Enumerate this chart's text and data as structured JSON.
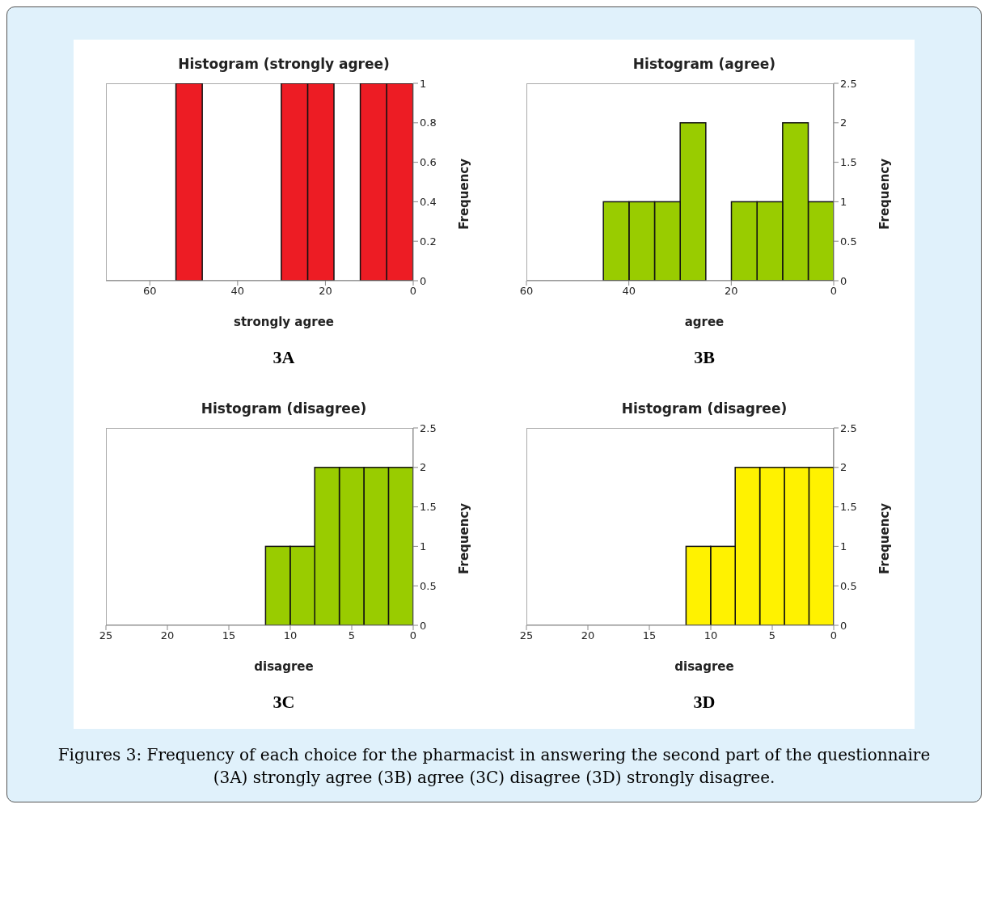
{
  "chart_data": [
    {
      "type": "histogram",
      "title": "Histogram (strongly agree)",
      "xlabel": "strongly agree",
      "ylabel": "Frequency",
      "annotations": [
        "3A"
      ],
      "bins": [
        0,
        6,
        12,
        18,
        24,
        30,
        36,
        42,
        48,
        54
      ],
      "values": [
        1,
        1,
        0,
        1,
        1,
        0,
        0,
        0,
        1
      ],
      "color": "#ed1c24",
      "xlim": [
        70,
        0
      ],
      "xticks": [
        60,
        40,
        20,
        0
      ],
      "ylim": [
        0,
        1
      ],
      "yticks": [
        0,
        0.2,
        0.4,
        0.6,
        0.8,
        1
      ]
    },
    {
      "type": "histogram",
      "title": "Histogram (agree)",
      "xlabel": "agree",
      "ylabel": "Frequency",
      "annotations": [
        "3B"
      ],
      "bins": [
        0,
        5,
        10,
        15,
        20,
        25,
        30,
        35,
        40,
        45
      ],
      "values": [
        1,
        2,
        1,
        1,
        0,
        2,
        1,
        1,
        1
      ],
      "color": "#99cc00",
      "xlim": [
        60,
        0
      ],
      "xticks": [
        60,
        40,
        20,
        0
      ],
      "ylim": [
        0,
        2.5
      ],
      "yticks": [
        0,
        0.5,
        1,
        1.5,
        2,
        2.5
      ]
    },
    {
      "type": "histogram",
      "title": "Histogram (disagree)",
      "xlabel": "disagree",
      "ylabel": "Frequency",
      "annotations": [
        "3C"
      ],
      "bins": [
        0,
        2,
        4,
        6,
        8,
        10,
        12
      ],
      "values": [
        2,
        2,
        2,
        2,
        1,
        1
      ],
      "color": "#99cc00",
      "xlim": [
        25,
        0
      ],
      "xticks": [
        25,
        20,
        15,
        10,
        5,
        0
      ],
      "ylim": [
        0,
        2.5
      ],
      "yticks": [
        0,
        0.5,
        1,
        1.5,
        2,
        2.5
      ]
    },
    {
      "type": "histogram",
      "title": "Histogram (disagree)",
      "xlabel": "disagree",
      "ylabel": "Frequency",
      "annotations": [
        "3D",
        "Figures 3: Frequency of each choice for the pharmacist in answering the second part of the questionnaire (3A) strongly agree (3B) agree (3C) disagree (3D) strongly disagree."
      ],
      "bins": [
        0,
        2,
        4,
        6,
        8,
        10,
        12
      ],
      "values": [
        2,
        2,
        2,
        2,
        1,
        1
      ],
      "color": "#fff200",
      "xlim": [
        25,
        0
      ],
      "xticks": [
        25,
        20,
        15,
        10,
        5,
        0
      ],
      "ylim": [
        0,
        2.5
      ],
      "yticks": [
        0,
        0.5,
        1,
        1.5,
        2,
        2.5
      ]
    }
  ]
}
